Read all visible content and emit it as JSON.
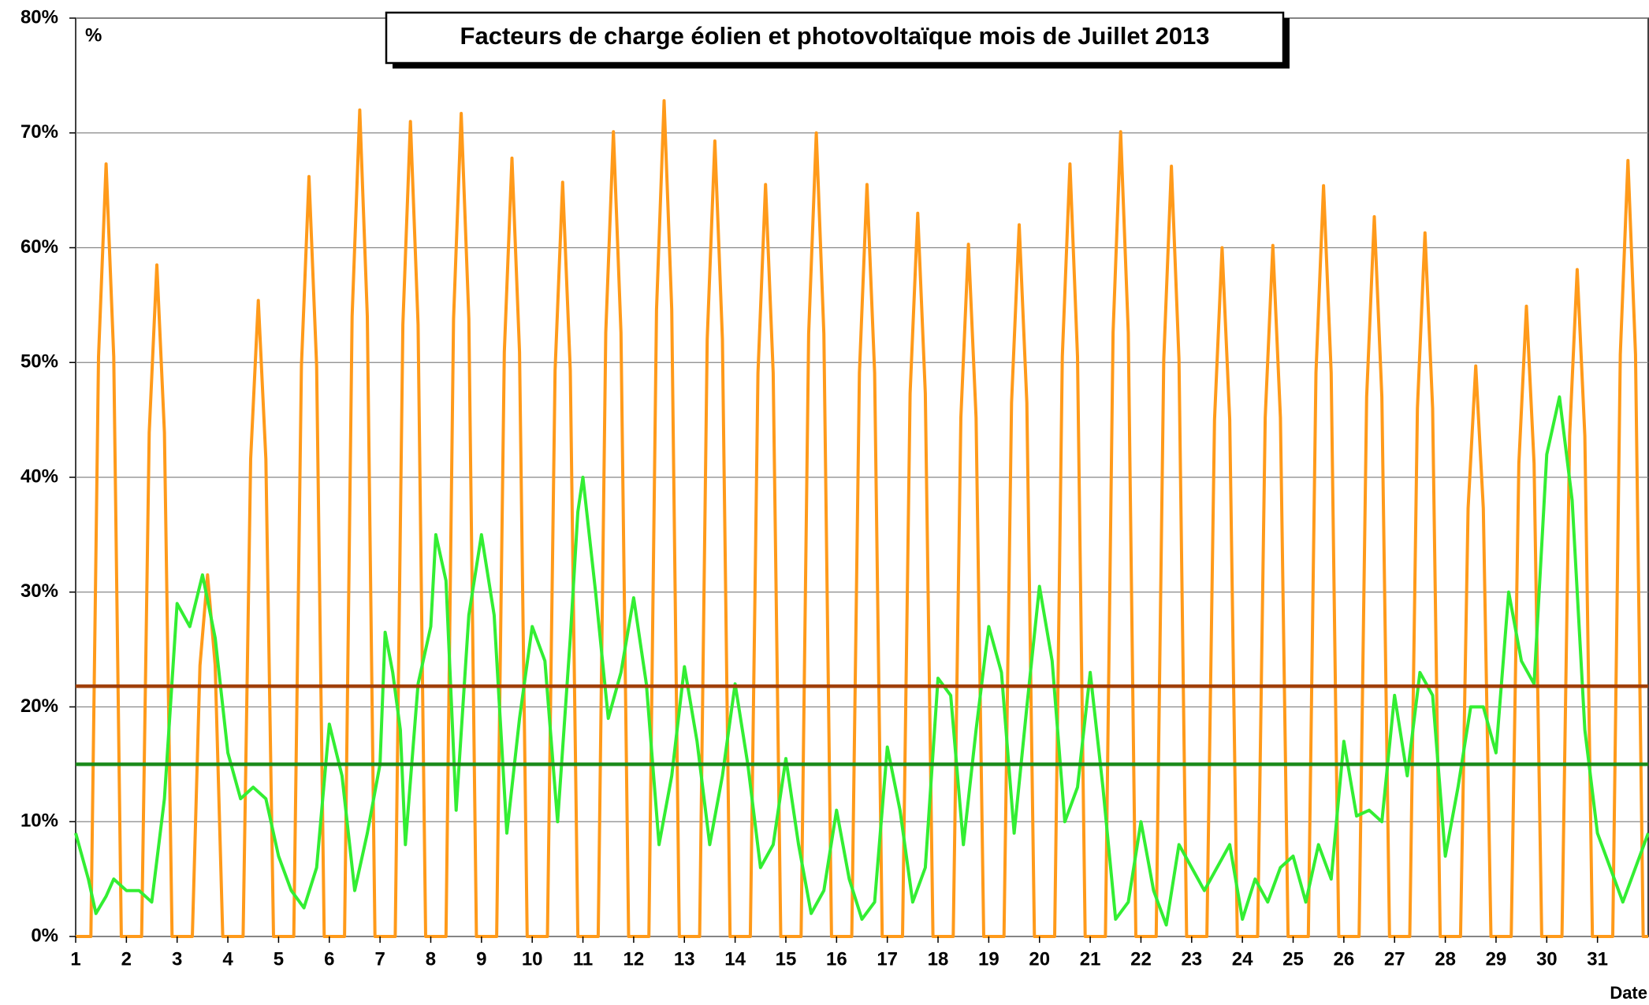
{
  "chart_data": {
    "type": "line",
    "title": "Facteurs de charge éolien et photovoltaïque mois de Juillet 2013",
    "y_label": "%",
    "x_label": "Date",
    "xlim": [
      1,
      32
    ],
    "xticks": [
      1,
      2,
      3,
      4,
      5,
      6,
      7,
      8,
      9,
      10,
      11,
      12,
      13,
      14,
      15,
      16,
      17,
      18,
      19,
      20,
      21,
      22,
      23,
      24,
      25,
      26,
      27,
      28,
      29,
      30,
      31
    ],
    "ylim": [
      0,
      80
    ],
    "yticks": [
      {
        "value": 0,
        "label": "0%"
      },
      {
        "value": 10,
        "label": "10%"
      },
      {
        "value": 20,
        "label": "20%"
      },
      {
        "value": 30,
        "label": "30%"
      },
      {
        "value": 40,
        "label": "40%"
      },
      {
        "value": 50,
        "label": "50%"
      },
      {
        "value": 60,
        "label": "60%"
      },
      {
        "value": 70,
        "label": "70%"
      },
      {
        "value": 80,
        "label": "80%"
      }
    ],
    "grid": true,
    "series": [
      {
        "color": "#ff9a1a",
        "x": [
          1,
          1.3,
          1.45,
          1.6,
          1.75,
          1.9,
          2.3,
          2.45,
          2.6,
          2.75,
          2.9,
          3.3,
          3.45,
          3.6,
          3.75,
          3.9,
          4.3,
          4.45,
          4.6,
          4.75,
          4.9,
          5.3,
          5.45,
          5.6,
          5.75,
          5.9,
          6.3,
          6.45,
          6.6,
          6.75,
          6.9,
          7.3,
          7.45,
          7.6,
          7.75,
          7.9,
          8.3,
          8.45,
          8.6,
          8.75,
          8.9,
          9.3,
          9.45,
          9.6,
          9.75,
          9.9,
          10.3,
          10.45,
          10.6,
          10.75,
          10.9,
          11.3,
          11.45,
          11.6,
          11.75,
          11.9,
          12.3,
          12.45,
          12.6,
          12.75,
          12.9,
          13.3,
          13.45,
          13.6,
          13.75,
          13.9,
          14.3,
          14.45,
          14.6,
          14.75,
          14.9,
          15.3,
          15.45,
          15.6,
          15.75,
          15.9,
          16.3,
          16.45,
          16.6,
          16.75,
          16.9,
          17.3,
          17.45,
          17.6,
          17.75,
          17.9,
          18.3,
          18.45,
          18.6,
          18.75,
          18.9,
          19.3,
          19.45,
          19.6,
          19.75,
          19.9,
          20.3,
          20.45,
          20.6,
          20.75,
          20.9,
          21.3,
          21.45,
          21.6,
          21.75,
          21.9,
          22.3,
          22.45,
          22.6,
          22.75,
          22.9,
          23.3,
          23.45,
          23.6,
          23.75,
          23.9,
          24.3,
          24.45,
          24.6,
          24.75,
          24.9,
          25.3,
          25.45,
          25.6,
          25.75,
          25.9,
          26.3,
          26.45,
          26.6,
          26.75,
          26.9,
          27.3,
          27.45,
          27.6,
          27.75,
          27.9,
          28.3,
          28.45,
          28.6,
          28.75,
          28.9,
          29.3,
          29.45,
          29.6,
          29.75,
          29.9,
          30.3,
          30.45,
          30.6,
          30.75,
          30.9,
          31.3,
          31.45,
          31.6,
          31.75,
          31.9,
          32
        ],
        "values": [
          0,
          0,
          50.5,
          67.3,
          50.5,
          0,
          0,
          43.9,
          58.5,
          43.9,
          0,
          0,
          23.6,
          31.5,
          23.6,
          0,
          0,
          41.6,
          55.4,
          41.6,
          0,
          0,
          49.7,
          66.2,
          49.7,
          0,
          0,
          54,
          72,
          54,
          0,
          0,
          53.3,
          71,
          53.3,
          0,
          0,
          53.8,
          71.7,
          53.8,
          0,
          0,
          50.9,
          67.8,
          50.9,
          0,
          0,
          49.3,
          65.7,
          49.3,
          0,
          0,
          52.6,
          70.1,
          52.6,
          0,
          0,
          54.6,
          72.8,
          54.6,
          0,
          0,
          52,
          69.3,
          52,
          0,
          0,
          49.1,
          65.5,
          49.1,
          0,
          0,
          52.5,
          70,
          52.5,
          0,
          0,
          49.1,
          65.5,
          49.1,
          0,
          0,
          47.3,
          63,
          47.3,
          0,
          0,
          45.2,
          60.3,
          45.2,
          0,
          0,
          46.5,
          62,
          46.5,
          0,
          0,
          50.5,
          67.3,
          50.5,
          0,
          0,
          52.6,
          70.1,
          52.6,
          0,
          0,
          50.3,
          67.1,
          50.3,
          0,
          0,
          45,
          60,
          45,
          0,
          0,
          45.2,
          60.2,
          45.2,
          0,
          0,
          49.1,
          65.4,
          49.1,
          0,
          0,
          47,
          62.7,
          47,
          0,
          0,
          46,
          61.3,
          46,
          0,
          0,
          37.3,
          49.7,
          37.3,
          0,
          0,
          41.2,
          54.9,
          41.2,
          0,
          0,
          43.6,
          58.1,
          43.6,
          0,
          0,
          50.7,
          67.6,
          50.7,
          0,
          0
        ]
      },
      {
        "color": "#33ee33",
        "x": [
          1,
          1.25,
          1.4,
          1.6,
          1.75,
          2,
          2.25,
          2.5,
          2.75,
          3,
          3.25,
          3.5,
          3.75,
          4,
          4.25,
          4.5,
          4.75,
          5,
          5.25,
          5.5,
          5.75,
          6,
          6.25,
          6.5,
          6.75,
          7,
          7.1,
          7.25,
          7.4,
          7.5,
          7.75,
          8,
          8.1,
          8.3,
          8.5,
          8.75,
          9,
          9.25,
          9.5,
          9.75,
          10,
          10.25,
          10.5,
          10.75,
          10.9,
          11,
          11.25,
          11.5,
          11.75,
          12,
          12.25,
          12.5,
          12.75,
          13,
          13.25,
          13.5,
          13.75,
          14,
          14.25,
          14.5,
          14.75,
          15,
          15.25,
          15.5,
          15.75,
          16,
          16.25,
          16.5,
          16.75,
          17,
          17.25,
          17.5,
          17.75,
          18,
          18.25,
          18.5,
          18.75,
          19,
          19.25,
          19.5,
          19.75,
          20,
          20.25,
          20.5,
          20.75,
          21,
          21.25,
          21.5,
          21.75,
          22,
          22.25,
          22.5,
          22.75,
          23,
          23.25,
          23.5,
          23.75,
          24,
          24.25,
          24.5,
          24.75,
          25,
          25.25,
          25.5,
          25.75,
          26,
          26.25,
          26.5,
          26.75,
          27,
          27.25,
          27.5,
          27.75,
          28,
          28.25,
          28.5,
          28.75,
          29,
          29.25,
          29.5,
          29.75,
          30,
          30.25,
          30.5,
          30.75,
          31,
          31.25,
          31.5,
          32
        ],
        "values": [
          9,
          5,
          2,
          3.5,
          5,
          4,
          4,
          3,
          12,
          29,
          27,
          31.5,
          26,
          16,
          12,
          13,
          12,
          7,
          4,
          2.5,
          6,
          18.5,
          14,
          4,
          9,
          15,
          26.5,
          23,
          18,
          8,
          22,
          27,
          35,
          31,
          11,
          28,
          35,
          28,
          9,
          19,
          27,
          24,
          10,
          26,
          37,
          40,
          30,
          19,
          23,
          29.5,
          22,
          8,
          14,
          23.5,
          17,
          8,
          14,
          22,
          15,
          6,
          8,
          15.5,
          8,
          2,
          4,
          11,
          5,
          1.5,
          3,
          16.5,
          11,
          3,
          6,
          22.5,
          21,
          8,
          18,
          27,
          23,
          9,
          20,
          30.5,
          24,
          10,
          13,
          23,
          13,
          1.5,
          3,
          10,
          4,
          1,
          8,
          6,
          4,
          6,
          8,
          1.5,
          5,
          3,
          6,
          7,
          3,
          8,
          5,
          17,
          10.5,
          11,
          10,
          21,
          14,
          23,
          21,
          7,
          13,
          20,
          20,
          16,
          30,
          24,
          22,
          42,
          47,
          38,
          18,
          9,
          6,
          3,
          9
        ]
      }
    ],
    "reference_lines": [
      {
        "value": 21.8,
        "color": "#a0400a"
      },
      {
        "value": 15,
        "color": "#1a8a1a"
      }
    ]
  }
}
